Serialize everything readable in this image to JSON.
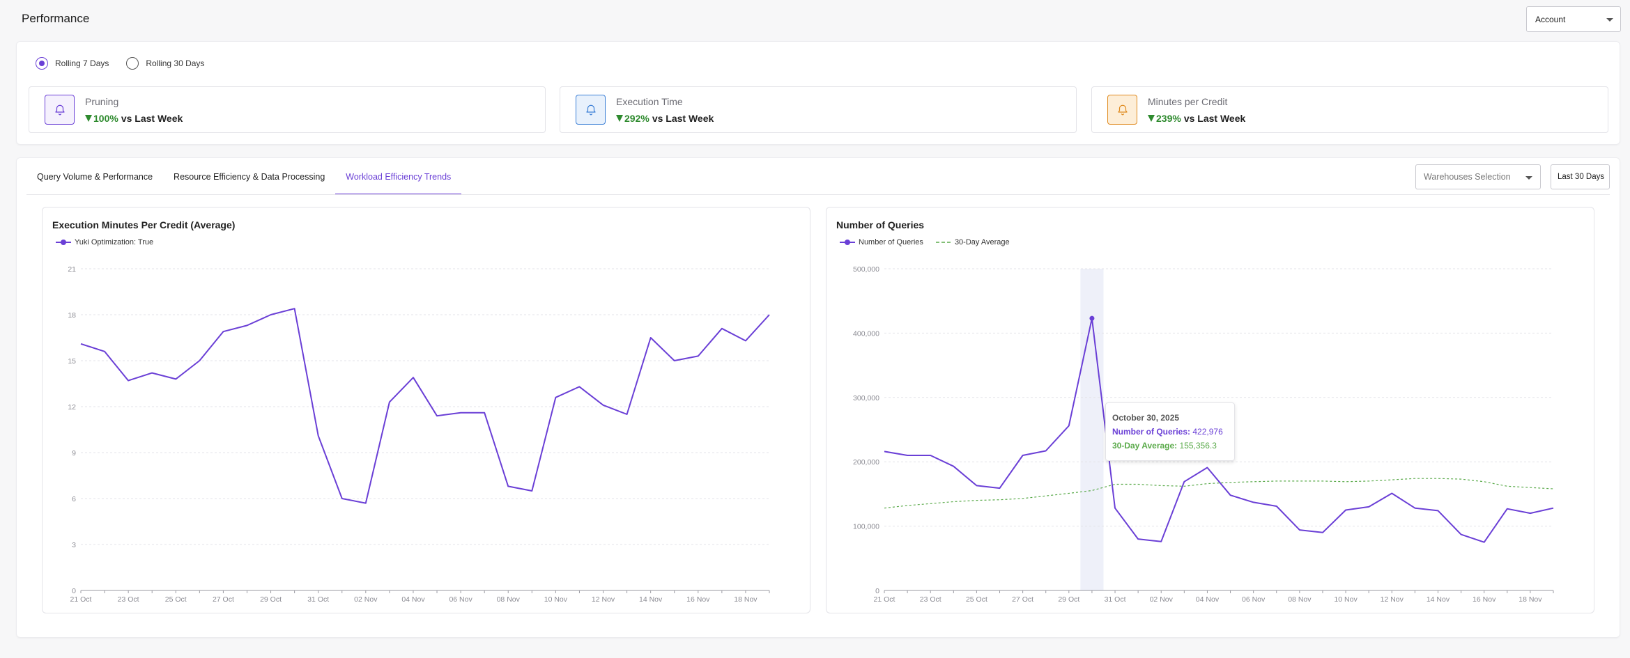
{
  "page": {
    "title": "Performance"
  },
  "account_select": {
    "value": "Account"
  },
  "period": {
    "options": [
      "Rolling 7 Days",
      "Rolling 30 Days"
    ],
    "selected": "Rolling 7 Days"
  },
  "kpis": [
    {
      "label": "Pruning",
      "delta": "100%",
      "suffix": "vs Last Week",
      "icon": "bell-icon",
      "accent": "#6a3fd6",
      "bg": "#f2eefc"
    },
    {
      "label": "Execution Time",
      "delta": "292%",
      "suffix": "vs Last Week",
      "icon": "bell-icon",
      "accent": "#3b7fd6",
      "bg": "#e8f1fc"
    },
    {
      "label": "Minutes per Credit",
      "delta": "239%",
      "suffix": "vs Last Week",
      "icon": "bell-icon",
      "accent": "#e08a1e",
      "bg": "#fdeed8"
    }
  ],
  "tabs": [
    {
      "label": "Query Volume & Performance",
      "active": false
    },
    {
      "label": "Resource Efficiency & Data Processing",
      "active": false
    },
    {
      "label": "Workload Efficiency Trends",
      "active": true
    }
  ],
  "filters": {
    "warehouses_placeholder": "Warehouses Selection",
    "range_label": "Last 30 Days"
  },
  "colors": {
    "purple": "#6a3fd6",
    "green": "#5aaa4a",
    "positive": "#2e8a2e"
  },
  "chart_data": [
    {
      "type": "line",
      "title": "Execution Minutes Per Credit (Average)",
      "legend_placement": "top-left",
      "x_tick_labels": [
        "21 Oct",
        "23 Oct",
        "25 Oct",
        "27 Oct",
        "29 Oct",
        "31 Oct",
        "02 Nov",
        "04 Nov",
        "06 Nov",
        "08 Nov",
        "10 Nov",
        "12 Nov",
        "14 Nov",
        "16 Nov",
        "18 Nov"
      ],
      "x": [
        "2025-10-21",
        "2025-10-22",
        "2025-10-23",
        "2025-10-24",
        "2025-10-25",
        "2025-10-26",
        "2025-10-27",
        "2025-10-28",
        "2025-10-29",
        "2025-10-30",
        "2025-10-31",
        "2025-11-01",
        "2025-11-02",
        "2025-11-03",
        "2025-11-04",
        "2025-11-05",
        "2025-11-06",
        "2025-11-07",
        "2025-11-08",
        "2025-11-09",
        "2025-11-10",
        "2025-11-11",
        "2025-11-12",
        "2025-11-13",
        "2025-11-14",
        "2025-11-15",
        "2025-11-16",
        "2025-11-17",
        "2025-11-18",
        "2025-11-19"
      ],
      "y_ticks": [
        0,
        3,
        6,
        9,
        12,
        15,
        18,
        21
      ],
      "ylim": [
        0,
        21
      ],
      "grid": true,
      "series": [
        {
          "name": "Yuki Optimization: True",
          "color": "#6a3fd6",
          "values": [
            16.1,
            15.6,
            13.7,
            14.2,
            13.8,
            15.0,
            16.9,
            17.3,
            18.0,
            18.4,
            10.1,
            6.0,
            5.7,
            12.3,
            13.9,
            11.4,
            11.6,
            11.6,
            6.8,
            6.5,
            12.6,
            13.3,
            12.1,
            11.5,
            16.5,
            15.0,
            15.3,
            17.1,
            16.3,
            18.0
          ]
        }
      ]
    },
    {
      "type": "line",
      "title": "Number of Queries",
      "legend_placement": "top-left",
      "x_tick_labels": [
        "21 Oct",
        "23 Oct",
        "25 Oct",
        "27 Oct",
        "29 Oct",
        "31 Oct",
        "02 Nov",
        "04 Nov",
        "06 Nov",
        "08 Nov",
        "10 Nov",
        "12 Nov",
        "14 Nov",
        "16 Nov",
        "18 Nov"
      ],
      "x": [
        "2025-10-21",
        "2025-10-22",
        "2025-10-23",
        "2025-10-24",
        "2025-10-25",
        "2025-10-26",
        "2025-10-27",
        "2025-10-28",
        "2025-10-29",
        "2025-10-30",
        "2025-10-31",
        "2025-11-01",
        "2025-11-02",
        "2025-11-03",
        "2025-11-04",
        "2025-11-05",
        "2025-11-06",
        "2025-11-07",
        "2025-11-08",
        "2025-11-09",
        "2025-11-10",
        "2025-11-11",
        "2025-11-12",
        "2025-11-13",
        "2025-11-14",
        "2025-11-15",
        "2025-11-16",
        "2025-11-17",
        "2025-11-18",
        "2025-11-19"
      ],
      "y_ticks": [
        "0",
        "100,000",
        "200,000",
        "300,000",
        "400,000",
        "500,000"
      ],
      "ylim": [
        0,
        500000
      ],
      "grid": true,
      "series": [
        {
          "name": "Number of Queries",
          "color": "#6a3fd6",
          "style": "solid",
          "values": [
            216000,
            210000,
            210000,
            193000,
            163000,
            159000,
            210000,
            217000,
            256000,
            422976,
            128000,
            80000,
            76000,
            169000,
            191000,
            148000,
            137000,
            131000,
            94000,
            90000,
            125000,
            130000,
            151000,
            128000,
            124000,
            87000,
            75000,
            127000,
            120000,
            128000
          ]
        },
        {
          "name": "30-Day Average",
          "color": "#5aaa4a",
          "style": "dashed",
          "values": [
            128000,
            132000,
            135000,
            138000,
            140000,
            141000,
            143000,
            147000,
            151000,
            155356.3,
            165000,
            165000,
            163000,
            162000,
            166000,
            168000,
            169000,
            170000,
            170000,
            170000,
            169000,
            170000,
            172000,
            174000,
            174000,
            173000,
            169000,
            162000,
            160000,
            158000
          ]
        }
      ],
      "highlight_index": 9,
      "tooltip": {
        "date": "October 30, 2025",
        "rows": [
          {
            "label": "Number of Queries:",
            "value": "422,976"
          },
          {
            "label": "30-Day Average:",
            "value": "155,356.3"
          }
        ]
      }
    }
  ]
}
